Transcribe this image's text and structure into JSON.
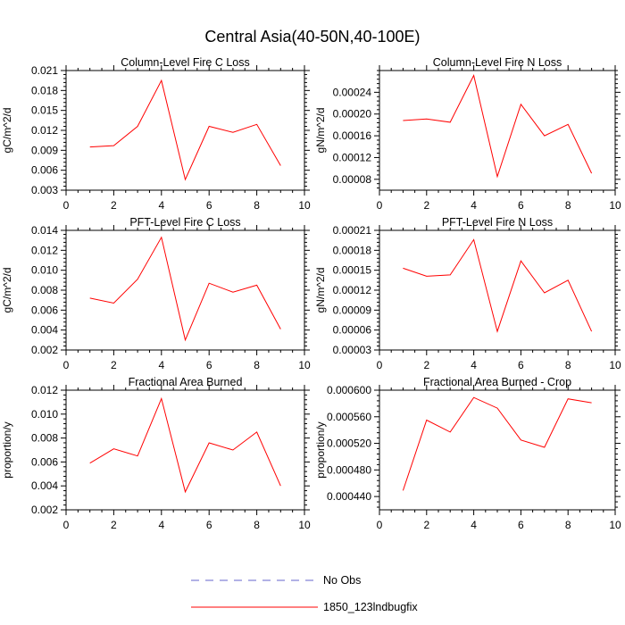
{
  "title": "Central Asia(40-50N,40-100E)",
  "chart_data": [
    {
      "type": "line",
      "title": "Column-Level Fire C Loss",
      "ylabel": "gC/m^2/d",
      "xlim": [
        0,
        10
      ],
      "xticks": [
        "0",
        "2",
        "4",
        "6",
        "8",
        "10"
      ],
      "ylim": [
        0.003,
        0.021
      ],
      "yticks": [
        "0.003",
        "0.006",
        "0.009",
        "0.012",
        "0.015",
        "0.018",
        "0.021"
      ],
      "series": [
        {
          "name": "1850_123lndbugfix",
          "x": [
            1,
            2,
            3,
            4,
            5,
            6,
            7,
            8,
            9
          ],
          "y": [
            0.0095,
            0.0097,
            0.0126,
            0.0195,
            0.0046,
            0.0126,
            0.0117,
            0.0129,
            0.0067
          ]
        }
      ]
    },
    {
      "type": "line",
      "title": "Column-Level Fire N Loss",
      "ylabel": "gN/m^2/d",
      "xlim": [
        0,
        10
      ],
      "xticks": [
        "0",
        "2",
        "4",
        "6",
        "8",
        "10"
      ],
      "ylim": [
        6e-05,
        0.00028
      ],
      "yticks": [
        "0.00008",
        "0.00012",
        "0.00016",
        "0.00020",
        "0.00024"
      ],
      "series": [
        {
          "name": "1850_123lndbugfix",
          "x": [
            1,
            2,
            3,
            4,
            5,
            6,
            7,
            8,
            9
          ],
          "y": [
            0.000188,
            0.000191,
            0.000185,
            0.000271,
            8.5e-05,
            0.000218,
            0.00016,
            0.000181,
            9.1e-05
          ]
        }
      ]
    },
    {
      "type": "line",
      "title": "PFT-Level Fire C Loss",
      "ylabel": "gC/m^2/d",
      "xlim": [
        0,
        10
      ],
      "xticks": [
        "0",
        "2",
        "4",
        "6",
        "8",
        "10"
      ],
      "ylim": [
        0.002,
        0.014
      ],
      "yticks": [
        "0.002",
        "0.004",
        "0.006",
        "0.008",
        "0.010",
        "0.012",
        "0.014"
      ],
      "series": [
        {
          "name": "1850_123lndbugfix",
          "x": [
            1,
            2,
            3,
            4,
            5,
            6,
            7,
            8,
            9
          ],
          "y": [
            0.0072,
            0.0067,
            0.0091,
            0.0133,
            0.003,
            0.0087,
            0.0078,
            0.0085,
            0.0041
          ]
        }
      ]
    },
    {
      "type": "line",
      "title": "PFT-Level Fire N Loss",
      "ylabel": "gN/m^2/d",
      "xlim": [
        0,
        10
      ],
      "xticks": [
        "0",
        "2",
        "4",
        "6",
        "8",
        "10"
      ],
      "ylim": [
        3e-05,
        0.00021
      ],
      "yticks": [
        "0.00003",
        "0.00006",
        "0.00009",
        "0.00012",
        "0.00015",
        "0.00018",
        "0.00021"
      ],
      "series": [
        {
          "name": "1850_123lndbugfix",
          "x": [
            1,
            2,
            3,
            4,
            5,
            6,
            7,
            8,
            9
          ],
          "y": [
            0.000153,
            0.000141,
            0.000143,
            0.000196,
            5.8e-05,
            0.000164,
            0.000116,
            0.000135,
            5.8e-05
          ]
        }
      ]
    },
    {
      "type": "line",
      "title": "Fractional Area Burned",
      "ylabel": "proportion/y",
      "xlim": [
        0,
        10
      ],
      "xticks": [
        "0",
        "2",
        "4",
        "6",
        "8",
        "10"
      ],
      "ylim": [
        0.002,
        0.012
      ],
      "yticks": [
        "0.002",
        "0.004",
        "0.006",
        "0.008",
        "0.010",
        "0.012"
      ],
      "series": [
        {
          "name": "1850_123lndbugfix",
          "x": [
            1,
            2,
            3,
            4,
            5,
            6,
            7,
            8,
            9
          ],
          "y": [
            0.0059,
            0.0071,
            0.0065,
            0.0113,
            0.0035,
            0.0076,
            0.007,
            0.0085,
            0.004
          ]
        }
      ]
    },
    {
      "type": "line",
      "title": "Fractional Area Burned - Crop",
      "ylabel": "proportion/y",
      "xlim": [
        0,
        10
      ],
      "xticks": [
        "0",
        "2",
        "4",
        "6",
        "8",
        "10"
      ],
      "ylim": [
        0.00042,
        0.0006
      ],
      "yticks": [
        "0.000440",
        "0.000480",
        "0.000520",
        "0.000560",
        "0.000600"
      ],
      "series": [
        {
          "name": "1850_123lndbugfix",
          "x": [
            1,
            2,
            3,
            4,
            5,
            6,
            7,
            8,
            9
          ],
          "y": [
            0.000449,
            0.000555,
            0.000537,
            0.000589,
            0.000573,
            0.000525,
            0.000514,
            0.000587,
            0.000581
          ]
        }
      ]
    }
  ],
  "legend": [
    {
      "label": "No Obs",
      "style": "dashed",
      "color": "#6666cc"
    },
    {
      "label": "1850_123lndbugfix",
      "style": "solid",
      "color": "#ff0000"
    }
  ],
  "colors": {
    "series": "#ff0000",
    "axis": "#000000"
  }
}
